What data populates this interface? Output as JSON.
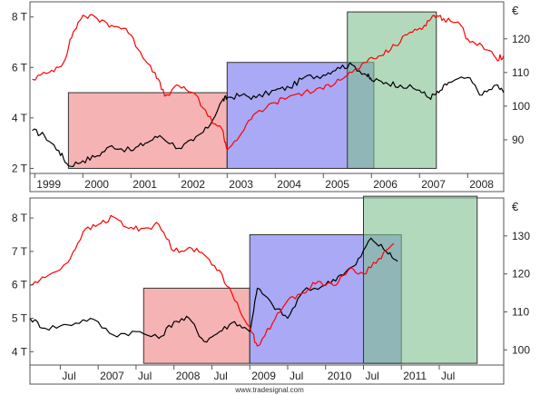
{
  "watermark": "www.tradesignal.com",
  "chart_data": [
    {
      "type": "line",
      "left_axis": {
        "ticks": [
          {
            "v": 2,
            "label": "2 T"
          },
          {
            "v": 4,
            "label": "4 T"
          },
          {
            "v": 6,
            "label": "6 T"
          },
          {
            "v": 8,
            "label": "8 T"
          }
        ],
        "range": [
          1.8,
          8.6
        ]
      },
      "right_axis": {
        "unit": "€",
        "ticks": [
          {
            "v": 90,
            "label": "90"
          },
          {
            "v": 100,
            "label": "100"
          },
          {
            "v": 110,
            "label": "110"
          },
          {
            "v": 120,
            "label": "120"
          }
        ],
        "range": [
          80,
          131
        ]
      },
      "x_range": [
        1998.9,
        2008.75
      ],
      "x_ticks": [
        {
          "v": 1999.0,
          "label": "1999"
        },
        {
          "v": 2000.0,
          "label": "2000"
        },
        {
          "v": 2001.0,
          "label": "2001"
        },
        {
          "v": 2002.0,
          "label": "2002"
        },
        {
          "v": 2003.0,
          "label": "2003"
        },
        {
          "v": 2004.0,
          "label": "2004"
        },
        {
          "v": 2005.0,
          "label": "2005"
        },
        {
          "v": 2006.0,
          "label": "2006"
        },
        {
          "v": 2007.0,
          "label": "2007"
        },
        {
          "v": 2008.0,
          "label": "2008"
        }
      ],
      "shaded_ranges": [
        {
          "color": "#f08080",
          "x": [
            1999.7,
            2003.0
          ],
          "y": [
            2.0,
            5.0
          ]
        },
        {
          "color": "#7070ee",
          "x": [
            2003.0,
            2006.05
          ],
          "y": [
            2.0,
            6.2
          ]
        },
        {
          "color": "#80c090",
          "x": [
            2005.5,
            2007.35
          ],
          "y": [
            2.0,
            8.2
          ]
        }
      ],
      "series": [
        {
          "axis": "left",
          "color": "#000000",
          "x": [
            1998.95,
            1999.2,
            1999.5,
            1999.7,
            2000.0,
            2000.3,
            2000.6,
            2001.0,
            2001.3,
            2001.6,
            2002.0,
            2002.3,
            2002.6,
            2002.9,
            2003.0,
            2003.3,
            2003.6,
            2004.0,
            2004.3,
            2004.6,
            2005.0,
            2005.3,
            2005.6,
            2005.9,
            2006.0,
            2006.3,
            2006.6,
            2007.0,
            2007.2,
            2007.4,
            2007.6,
            2008.0,
            2008.3,
            2008.6,
            2008.75
          ],
          "y": [
            3.5,
            3.3,
            2.7,
            2.1,
            2.3,
            2.5,
            2.9,
            2.7,
            3.0,
            3.3,
            2.8,
            3.1,
            3.6,
            4.7,
            4.8,
            4.9,
            4.8,
            5.1,
            5.2,
            5.6,
            5.7,
            6.0,
            6.1,
            5.7,
            5.5,
            5.4,
            5.3,
            5.1,
            4.8,
            5.0,
            5.4,
            5.6,
            4.9,
            5.3,
            5.0
          ]
        },
        {
          "axis": "right",
          "color": "#ff0000",
          "x": [
            1998.95,
            1999.3,
            1999.6,
            1999.8,
            2000.0,
            2000.3,
            2000.6,
            2000.9,
            2001.2,
            2001.5,
            2001.7,
            2002.0,
            2002.3,
            2002.6,
            2002.9,
            2003.0,
            2003.3,
            2003.6,
            2004.0,
            2004.3,
            2004.6,
            2005.0,
            2005.3,
            2005.6,
            2005.9,
            2006.2,
            2006.5,
            2006.8,
            2007.1,
            2007.3,
            2007.5,
            2007.8,
            2008.0,
            2008.3,
            2008.6,
            2008.75
          ],
          "y": [
            108,
            110,
            113,
            122,
            127,
            126,
            124,
            123,
            116,
            110,
            103,
            106,
            104,
            97,
            93,
            87,
            92,
            98,
            101,
            103,
            104,
            105,
            108,
            110,
            113,
            115,
            118,
            122,
            124,
            127,
            126,
            125,
            120,
            118,
            114,
            115
          ]
        }
      ]
    },
    {
      "type": "line",
      "left_axis": {
        "ticks": [
          {
            "v": 4,
            "label": "4 T"
          },
          {
            "v": 5,
            "label": "5 T"
          },
          {
            "v": 6,
            "label": "6 T"
          },
          {
            "v": 7,
            "label": "7 T"
          },
          {
            "v": 8,
            "label": "8 T"
          }
        ],
        "range": [
          3.6,
          8.6
        ]
      },
      "right_axis": {
        "unit": "€",
        "ticks": [
          {
            "v": 100,
            "label": "100"
          },
          {
            "v": 110,
            "label": "110"
          },
          {
            "v": 120,
            "label": "120"
          },
          {
            "v": 130,
            "label": "130"
          }
        ],
        "range": [
          96,
          140
        ]
      },
      "x_range": [
        2006.1,
        2012.35
      ],
      "x_ticks": [
        {
          "v": 2006.5,
          "label": "Jul"
        },
        {
          "v": 2007.0,
          "label": "2007"
        },
        {
          "v": 2007.5,
          "label": "Jul"
        },
        {
          "v": 2008.0,
          "label": "2008"
        },
        {
          "v": 2008.5,
          "label": "Jul"
        },
        {
          "v": 2009.0,
          "label": "2009"
        },
        {
          "v": 2009.5,
          "label": "Jul"
        },
        {
          "v": 2010.0,
          "label": "2010"
        },
        {
          "v": 2010.5,
          "label": "Jul"
        },
        {
          "v": 2011.0,
          "label": "2011"
        },
        {
          "v": 2011.5,
          "label": "Jul"
        }
      ],
      "shaded_ranges": [
        {
          "color": "#f08080",
          "x": [
            2007.6,
            2009.0
          ],
          "y": [
            3.65,
            5.9
          ]
        },
        {
          "color": "#7070ee",
          "x": [
            2009.0,
            2011.0
          ],
          "y": [
            3.65,
            7.5
          ]
        },
        {
          "color": "#80c090",
          "x": [
            2010.5,
            2012.0
          ],
          "y": [
            3.65,
            8.65
          ]
        }
      ],
      "series": [
        {
          "axis": "left",
          "color": "#000000",
          "x": [
            2006.1,
            2006.3,
            2006.6,
            2006.9,
            2007.2,
            2007.5,
            2007.8,
            2008.0,
            2008.2,
            2008.4,
            2008.6,
            2008.8,
            2009.0,
            2009.1,
            2009.3,
            2009.5,
            2009.7,
            2010.0,
            2010.2,
            2010.4,
            2010.6,
            2010.8,
            2010.95
          ],
          "y": [
            5.0,
            4.7,
            4.8,
            5.0,
            4.5,
            4.6,
            4.4,
            4.9,
            5.0,
            4.3,
            4.6,
            4.9,
            4.6,
            5.9,
            5.4,
            5.0,
            5.8,
            6.0,
            6.3,
            6.6,
            7.4,
            7.0,
            6.7
          ]
        },
        {
          "axis": "right",
          "color": "#ff0000",
          "x": [
            2006.1,
            2006.3,
            2006.6,
            2006.8,
            2007.0,
            2007.2,
            2007.4,
            2007.6,
            2007.8,
            2008.0,
            2008.2,
            2008.4,
            2008.6,
            2008.8,
            2009.0,
            2009.1,
            2009.3,
            2009.5,
            2009.7,
            2009.9,
            2010.1,
            2010.3,
            2010.5,
            2010.7,
            2010.9
          ],
          "y": [
            117,
            119,
            123,
            131,
            133,
            135,
            132,
            132,
            133,
            126,
            127,
            125,
            121,
            113,
            106,
            101,
            107,
            113,
            115,
            118,
            117,
            121,
            120,
            124,
            128
          ]
        }
      ]
    }
  ]
}
